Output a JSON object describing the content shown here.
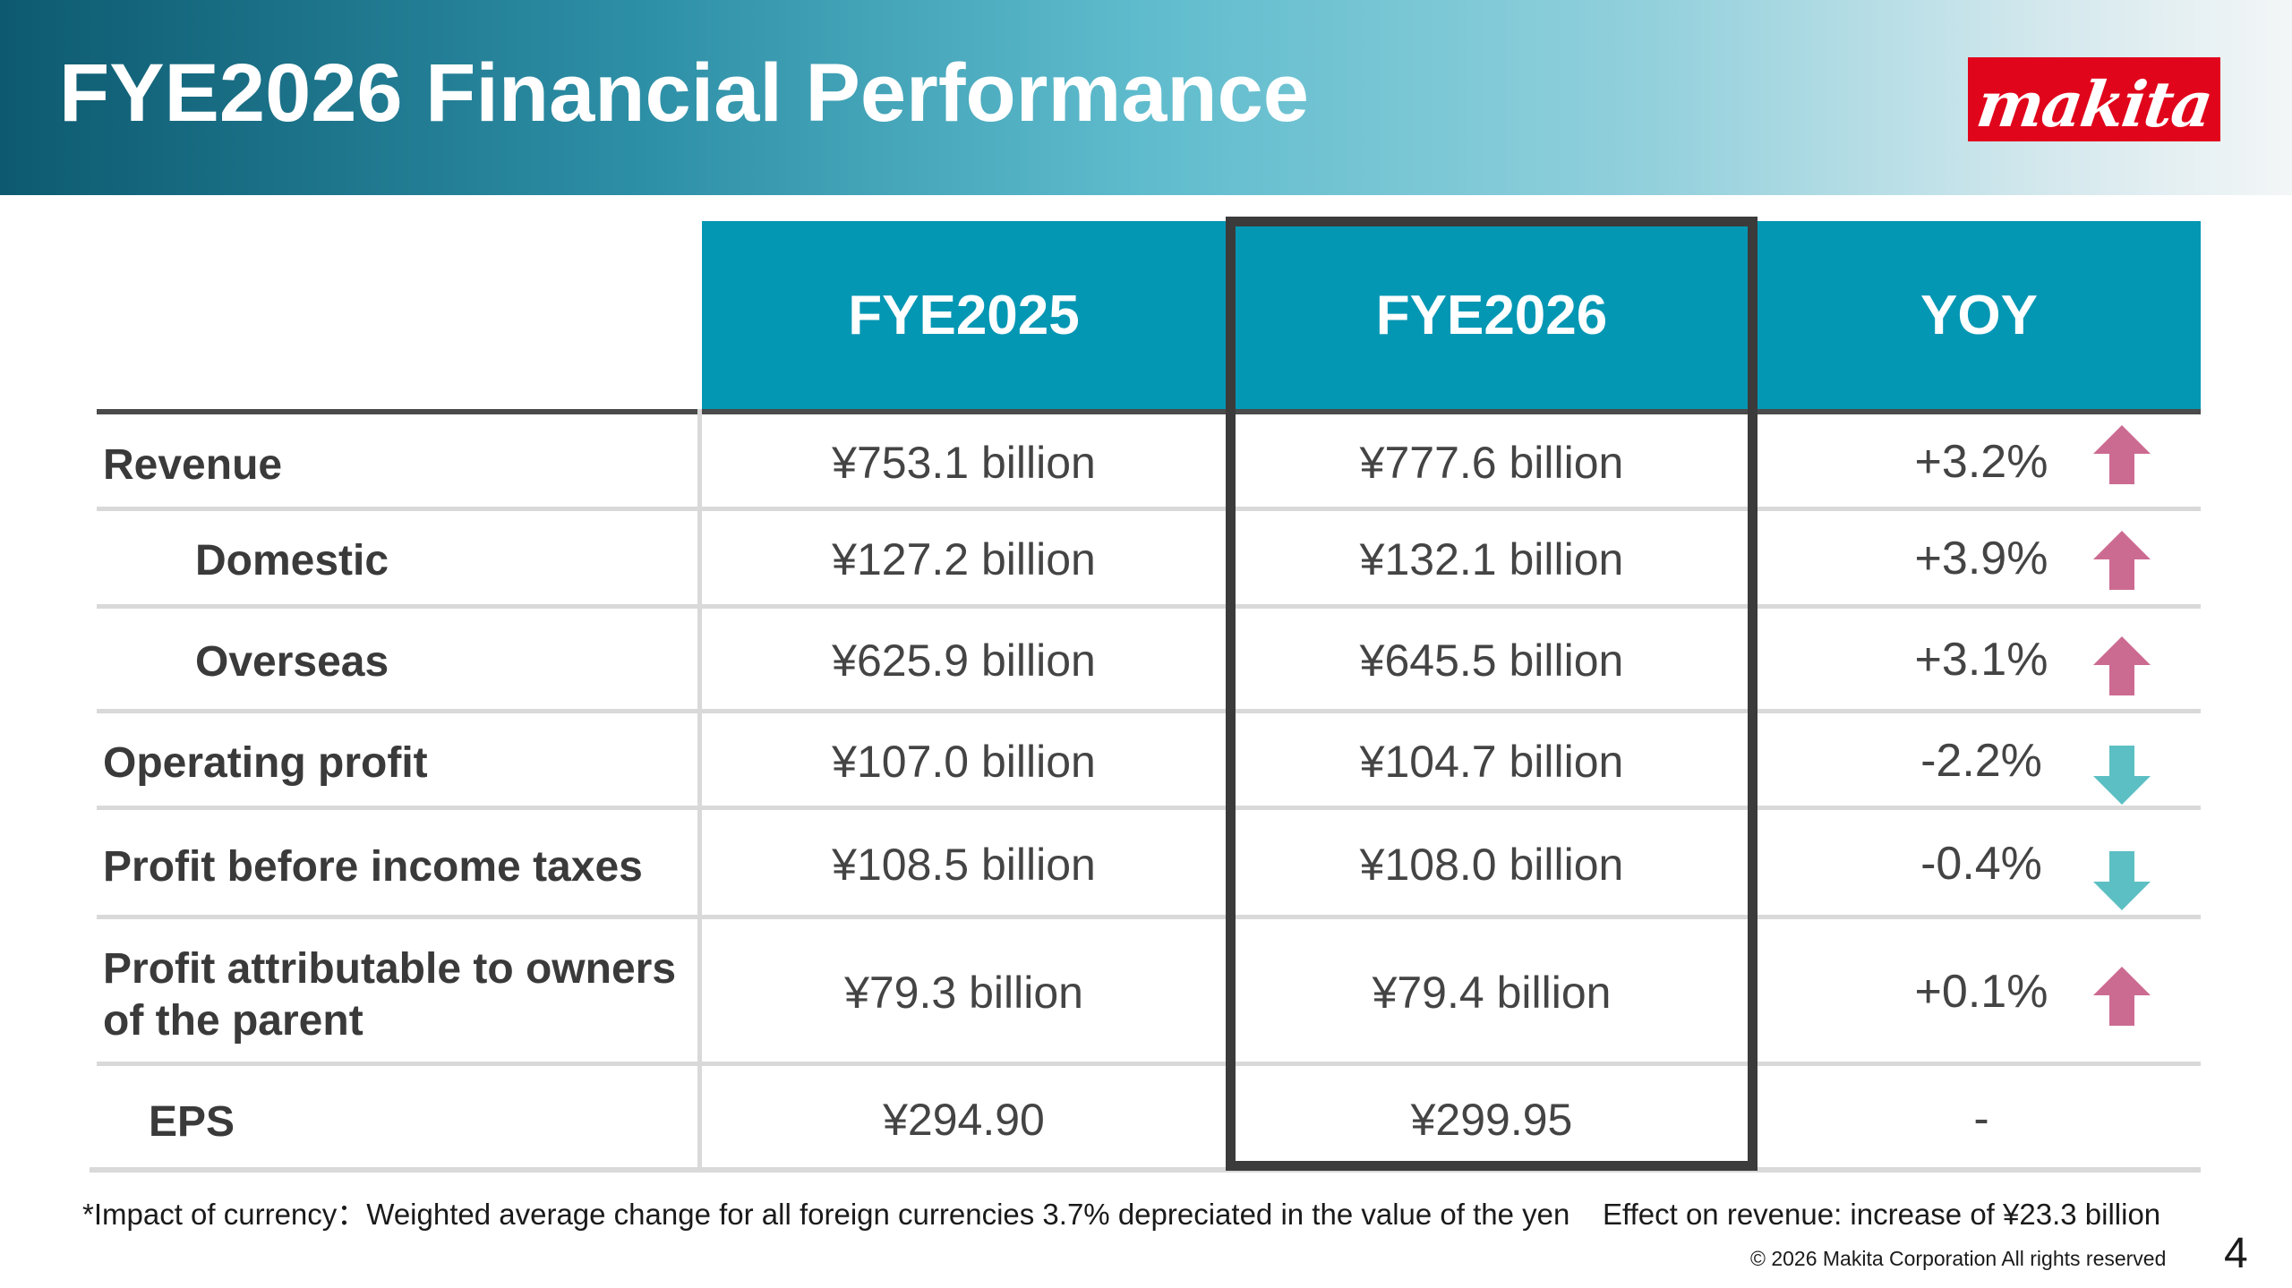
{
  "title": "FYE2026 Financial Performance",
  "logo_text": "makita",
  "columns": [
    "FYE2025",
    "FYE2026",
    "YOY"
  ],
  "rows": [
    {
      "label": "Revenue",
      "fye2025": "¥753.1 billion",
      "fye2026": "¥777.6 billion",
      "yoy": "+3.2%",
      "trend": "up"
    },
    {
      "label": "Domestic",
      "fye2025": "¥127.2 billion",
      "fye2026": "¥132.1 billion",
      "yoy": "+3.9%",
      "trend": "up"
    },
    {
      "label": "Overseas",
      "fye2025": "¥625.9 billion",
      "fye2026": "¥645.5 billion",
      "yoy": "+3.1%",
      "trend": "up"
    },
    {
      "label": "Operating profit",
      "fye2025": "¥107.0 billion",
      "fye2026": "¥104.7 billion",
      "yoy": "-2.2%",
      "trend": "down"
    },
    {
      "label": "Profit before income taxes",
      "fye2025": "¥108.5 billion",
      "fye2026": "¥108.0 billion",
      "yoy": "-0.4%",
      "trend": "down"
    },
    {
      "label_line1": "Profit attributable to owners",
      "label_line2": "of the parent",
      "fye2025": "¥79.3 billion",
      "fye2026": "¥79.4 billion",
      "yoy": "+0.1%",
      "trend": "up"
    },
    {
      "label": "EPS",
      "fye2025": "¥294.90",
      "fye2026": "¥299.95",
      "yoy": "-"
    }
  ],
  "footnote": "*Impact of currency：Weighted average change for all foreign currencies 3.7% depreciated in the value of the yen    Effect on revenue: increase of ¥23.3 billion",
  "copyright": "© 2026  Makita Corporation All rights reserved",
  "page_number": "4",
  "colors": {
    "header_cell": "#0497b4",
    "arrow_up": "#cc6b91",
    "arrow_down": "#5cbfc4",
    "logo_red": "#e1051c"
  }
}
